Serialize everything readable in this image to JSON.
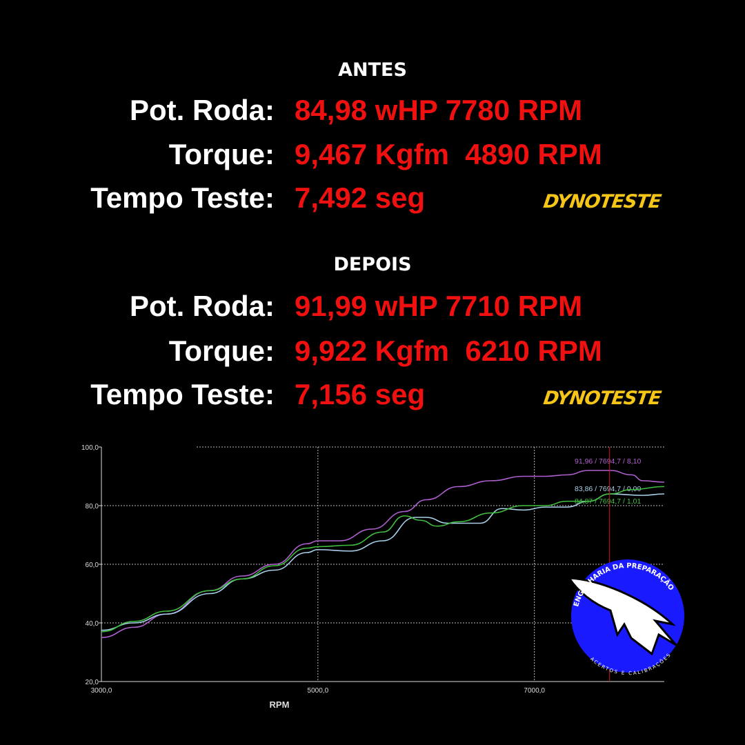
{
  "antes": {
    "heading": "ANTES",
    "rows": [
      {
        "label": "Pot. Roda:",
        "value": "84,98 wHP 7780 RPM"
      },
      {
        "label": "Torque:",
        "value": "9,467 Kgfm  4890 RPM"
      },
      {
        "label": "Tempo Teste:",
        "value": "7,492 seg"
      }
    ],
    "brand": "DYNOTESTE"
  },
  "depois": {
    "heading": "DEPOIS",
    "rows": [
      {
        "label": "Pot. Roda:",
        "value": "91,99 wHP 7710 RPM"
      },
      {
        "label": "Torque:",
        "value": "9,922 Kgfm  6210 RPM"
      },
      {
        "label": "Tempo Teste:",
        "value": "7,156 seg"
      }
    ],
    "brand": "DYNOTESTE"
  },
  "logo": {
    "top_text": "ENGENHARIA DA PREPARAÇÃO",
    "bottom_text": "ACERTOS E CALIBRAÇÕES",
    "color": "#1a1aff"
  },
  "chart_data": {
    "type": "line",
    "xlabel": "RPM",
    "ylabel": "",
    "xlim": [
      3000,
      8200
    ],
    "ylim": [
      20,
      100
    ],
    "x_ticks": [
      "3000,0",
      "5000,0",
      "7000,0"
    ],
    "y_ticks": [
      "20,0",
      "40,0",
      "60,0",
      "80,0",
      "100,0"
    ],
    "grid": true,
    "cursor_x": 7694.7,
    "cursor_color": "#d01818",
    "series": [
      {
        "color": "#b060d0",
        "readout": "91,96 / 7694,7 / 8,10",
        "points": [
          [
            3000,
            35
          ],
          [
            3300,
            38.5
          ],
          [
            3600,
            43
          ],
          [
            4000,
            51
          ],
          [
            4300,
            56
          ],
          [
            4600,
            60
          ],
          [
            4900,
            67
          ],
          [
            5000,
            68
          ],
          [
            5200,
            68
          ],
          [
            5500,
            72
          ],
          [
            5800,
            78
          ],
          [
            6000,
            82
          ],
          [
            6300,
            86.5
          ],
          [
            6600,
            88.5
          ],
          [
            6900,
            90
          ],
          [
            7100,
            90
          ],
          [
            7300,
            90.5
          ],
          [
            7500,
            92
          ],
          [
            7700,
            92
          ],
          [
            7900,
            90.5
          ],
          [
            8000,
            88.5
          ],
          [
            8200,
            88
          ]
        ]
      },
      {
        "color": "#a8d0e8",
        "readout": "83,86 / 7694,7 / 0,00",
        "points": [
          [
            3000,
            37.5
          ],
          [
            3300,
            40
          ],
          [
            3600,
            43
          ],
          [
            4000,
            50
          ],
          [
            4300,
            55
          ],
          [
            4600,
            58
          ],
          [
            4900,
            64
          ],
          [
            5000,
            65
          ],
          [
            5300,
            64.5
          ],
          [
            5600,
            68
          ],
          [
            5900,
            76
          ],
          [
            6000,
            76
          ],
          [
            6200,
            74
          ],
          [
            6500,
            74
          ],
          [
            6700,
            79
          ],
          [
            6900,
            78.5
          ],
          [
            7100,
            79.5
          ],
          [
            7300,
            79.5
          ],
          [
            7500,
            81.5
          ],
          [
            7700,
            84
          ],
          [
            8000,
            83.5
          ],
          [
            8200,
            84
          ]
        ]
      },
      {
        "color": "#40c040",
        "readout": "84,87 / 7694,7 / 1,01",
        "points": [
          [
            3000,
            37
          ],
          [
            3300,
            40.5
          ],
          [
            3600,
            44
          ],
          [
            4000,
            51
          ],
          [
            4300,
            55
          ],
          [
            4600,
            59.5
          ],
          [
            4900,
            65.5
          ],
          [
            5000,
            66
          ],
          [
            5300,
            66.5
          ],
          [
            5600,
            71
          ],
          [
            5800,
            76.5
          ],
          [
            5950,
            75
          ],
          [
            6100,
            73
          ],
          [
            6300,
            74.5
          ],
          [
            6600,
            77.5
          ],
          [
            6900,
            80
          ],
          [
            7100,
            80
          ],
          [
            7300,
            81.5
          ],
          [
            7500,
            81.5
          ],
          [
            7700,
            84
          ],
          [
            7900,
            85.5
          ],
          [
            8200,
            86.5
          ]
        ]
      }
    ]
  }
}
